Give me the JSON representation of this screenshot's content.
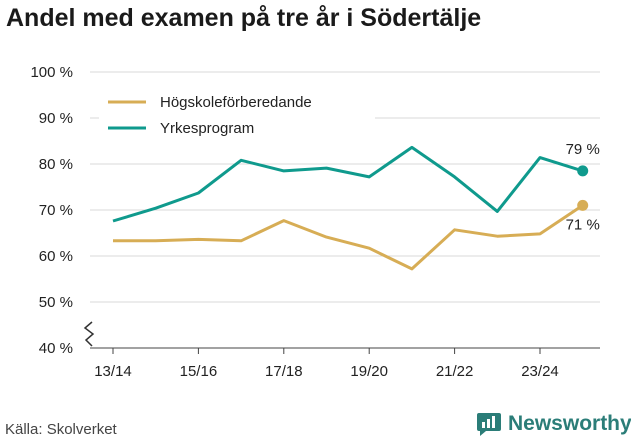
{
  "title": "Andel med examen på tre år i Södertälje",
  "source": "Källa: Skolverket",
  "brand": "Newsworthy",
  "colors": {
    "hogsk": "#d7ad55",
    "yrkes": "#0f9a8d",
    "grid": "#d9d9d9",
    "brand": "#2b7d78"
  },
  "chart_data": {
    "type": "line",
    "title": "Andel med examen på tre år i Södertälje",
    "xlabel": "",
    "ylabel": "",
    "ylim": [
      40,
      100
    ],
    "y_ticks": [
      40,
      50,
      60,
      70,
      80,
      90,
      100
    ],
    "y_tick_labels": [
      "40 %",
      "50 %",
      "60 %",
      "70 %",
      "80 %",
      "90 %",
      "100 %"
    ],
    "x": [
      "13/14",
      "14/15",
      "15/16",
      "16/17",
      "17/18",
      "18/19",
      "19/20",
      "20/21",
      "21/22",
      "22/23",
      "23/24",
      "24/25"
    ],
    "x_tick_labels": [
      "13/14",
      "15/16",
      "17/18",
      "19/20",
      "21/22",
      "23/24"
    ],
    "series": [
      {
        "name": "Högskoleförberedande",
        "color": "#d7ad55",
        "values": [
          63.3,
          63.3,
          63.6,
          63.3,
          67.7,
          64.1,
          61.7,
          57.2,
          65.7,
          64.3,
          64.8,
          71
        ],
        "end_label": "71 %"
      },
      {
        "name": "Yrkesprogram",
        "color": "#0f9a8d",
        "values": [
          67.6,
          70.4,
          73.7,
          80.8,
          78.5,
          79.1,
          77.2,
          83.6,
          77.2,
          69.7,
          81.4,
          78.5
        ],
        "end_label": "79 %"
      }
    ],
    "legend": [
      "Högskoleförberedande",
      "Yrkesprogram"
    ],
    "legend_position": "top-left",
    "grid": true,
    "axis_break": true
  }
}
